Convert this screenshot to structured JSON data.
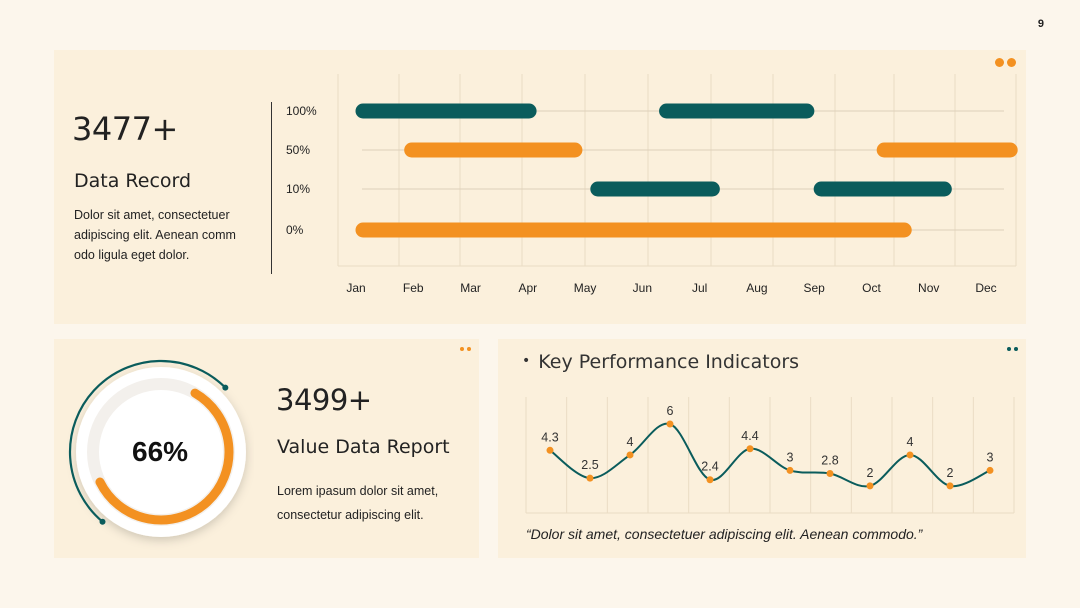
{
  "page_number": "9",
  "colors": {
    "teal": "#0a5c5c",
    "orange": "#f39121",
    "panel": "#fbf0dc",
    "background": "#fcf6ec"
  },
  "top_panel": {
    "value": "3477+",
    "title": "Data Record",
    "desc_lines": [
      "Dolor sit amet, consectetuer",
      "adipiscing elit. Aenean comm",
      "odo ligula eget dolor."
    ]
  },
  "left_panel": {
    "value": "3499+",
    "title": "Value Data Report",
    "desc_lines": [
      "Lorem ipasum dolor sit amet,",
      "consectetur adipiscing elit."
    ],
    "percent_label": "66%"
  },
  "kpi_panel": {
    "title": "Key Performance Indicators",
    "quote": "“Dolor sit amet, consectetuer adipiscing elit. Aenean commodo.”"
  },
  "chart_data": [
    {
      "type": "bar",
      "subtype": "timeline-range",
      "x_categories": [
        "Jan",
        "Feb",
        "Mar",
        "Apr",
        "May",
        "Jun",
        "Jul",
        "Aug",
        "Sep",
        "Oct",
        "Nov",
        "Dec"
      ],
      "y_categories": [
        "100%",
        "50%",
        "10%",
        "0%"
      ],
      "grid": true,
      "bars": [
        {
          "row": "100%",
          "start": 0,
          "end": 2.9,
          "color": "#0a5c5c"
        },
        {
          "row": "100%",
          "start": 5.3,
          "end": 7.75,
          "color": "#0a5c5c"
        },
        {
          "row": "50%",
          "start": 0.85,
          "end": 3.7,
          "color": "#f39121"
        },
        {
          "row": "50%",
          "start": 9.1,
          "end": 11.3,
          "color": "#f39121"
        },
        {
          "row": "10%",
          "start": 4.1,
          "end": 6.1,
          "color": "#0a5c5c"
        },
        {
          "row": "10%",
          "start": 8.0,
          "end": 10.15,
          "color": "#0a5c5c"
        },
        {
          "row": "0%",
          "start": 0,
          "end": 9.45,
          "color": "#f39121"
        }
      ]
    },
    {
      "type": "pie",
      "subtype": "donut-progress",
      "value": 66,
      "label": "66%"
    },
    {
      "type": "line",
      "smooth": true,
      "grid": true,
      "values": [
        4.3,
        2.5,
        4,
        6,
        2.4,
        4.4,
        3,
        2.8,
        2,
        4,
        2,
        3
      ],
      "labels": [
        "4.3",
        "2.5",
        "4",
        "6",
        "2.4",
        "4.4",
        "3",
        "2.8",
        "2",
        "4",
        "2",
        "3"
      ],
      "ylim": [
        1.8,
        6
      ]
    }
  ]
}
